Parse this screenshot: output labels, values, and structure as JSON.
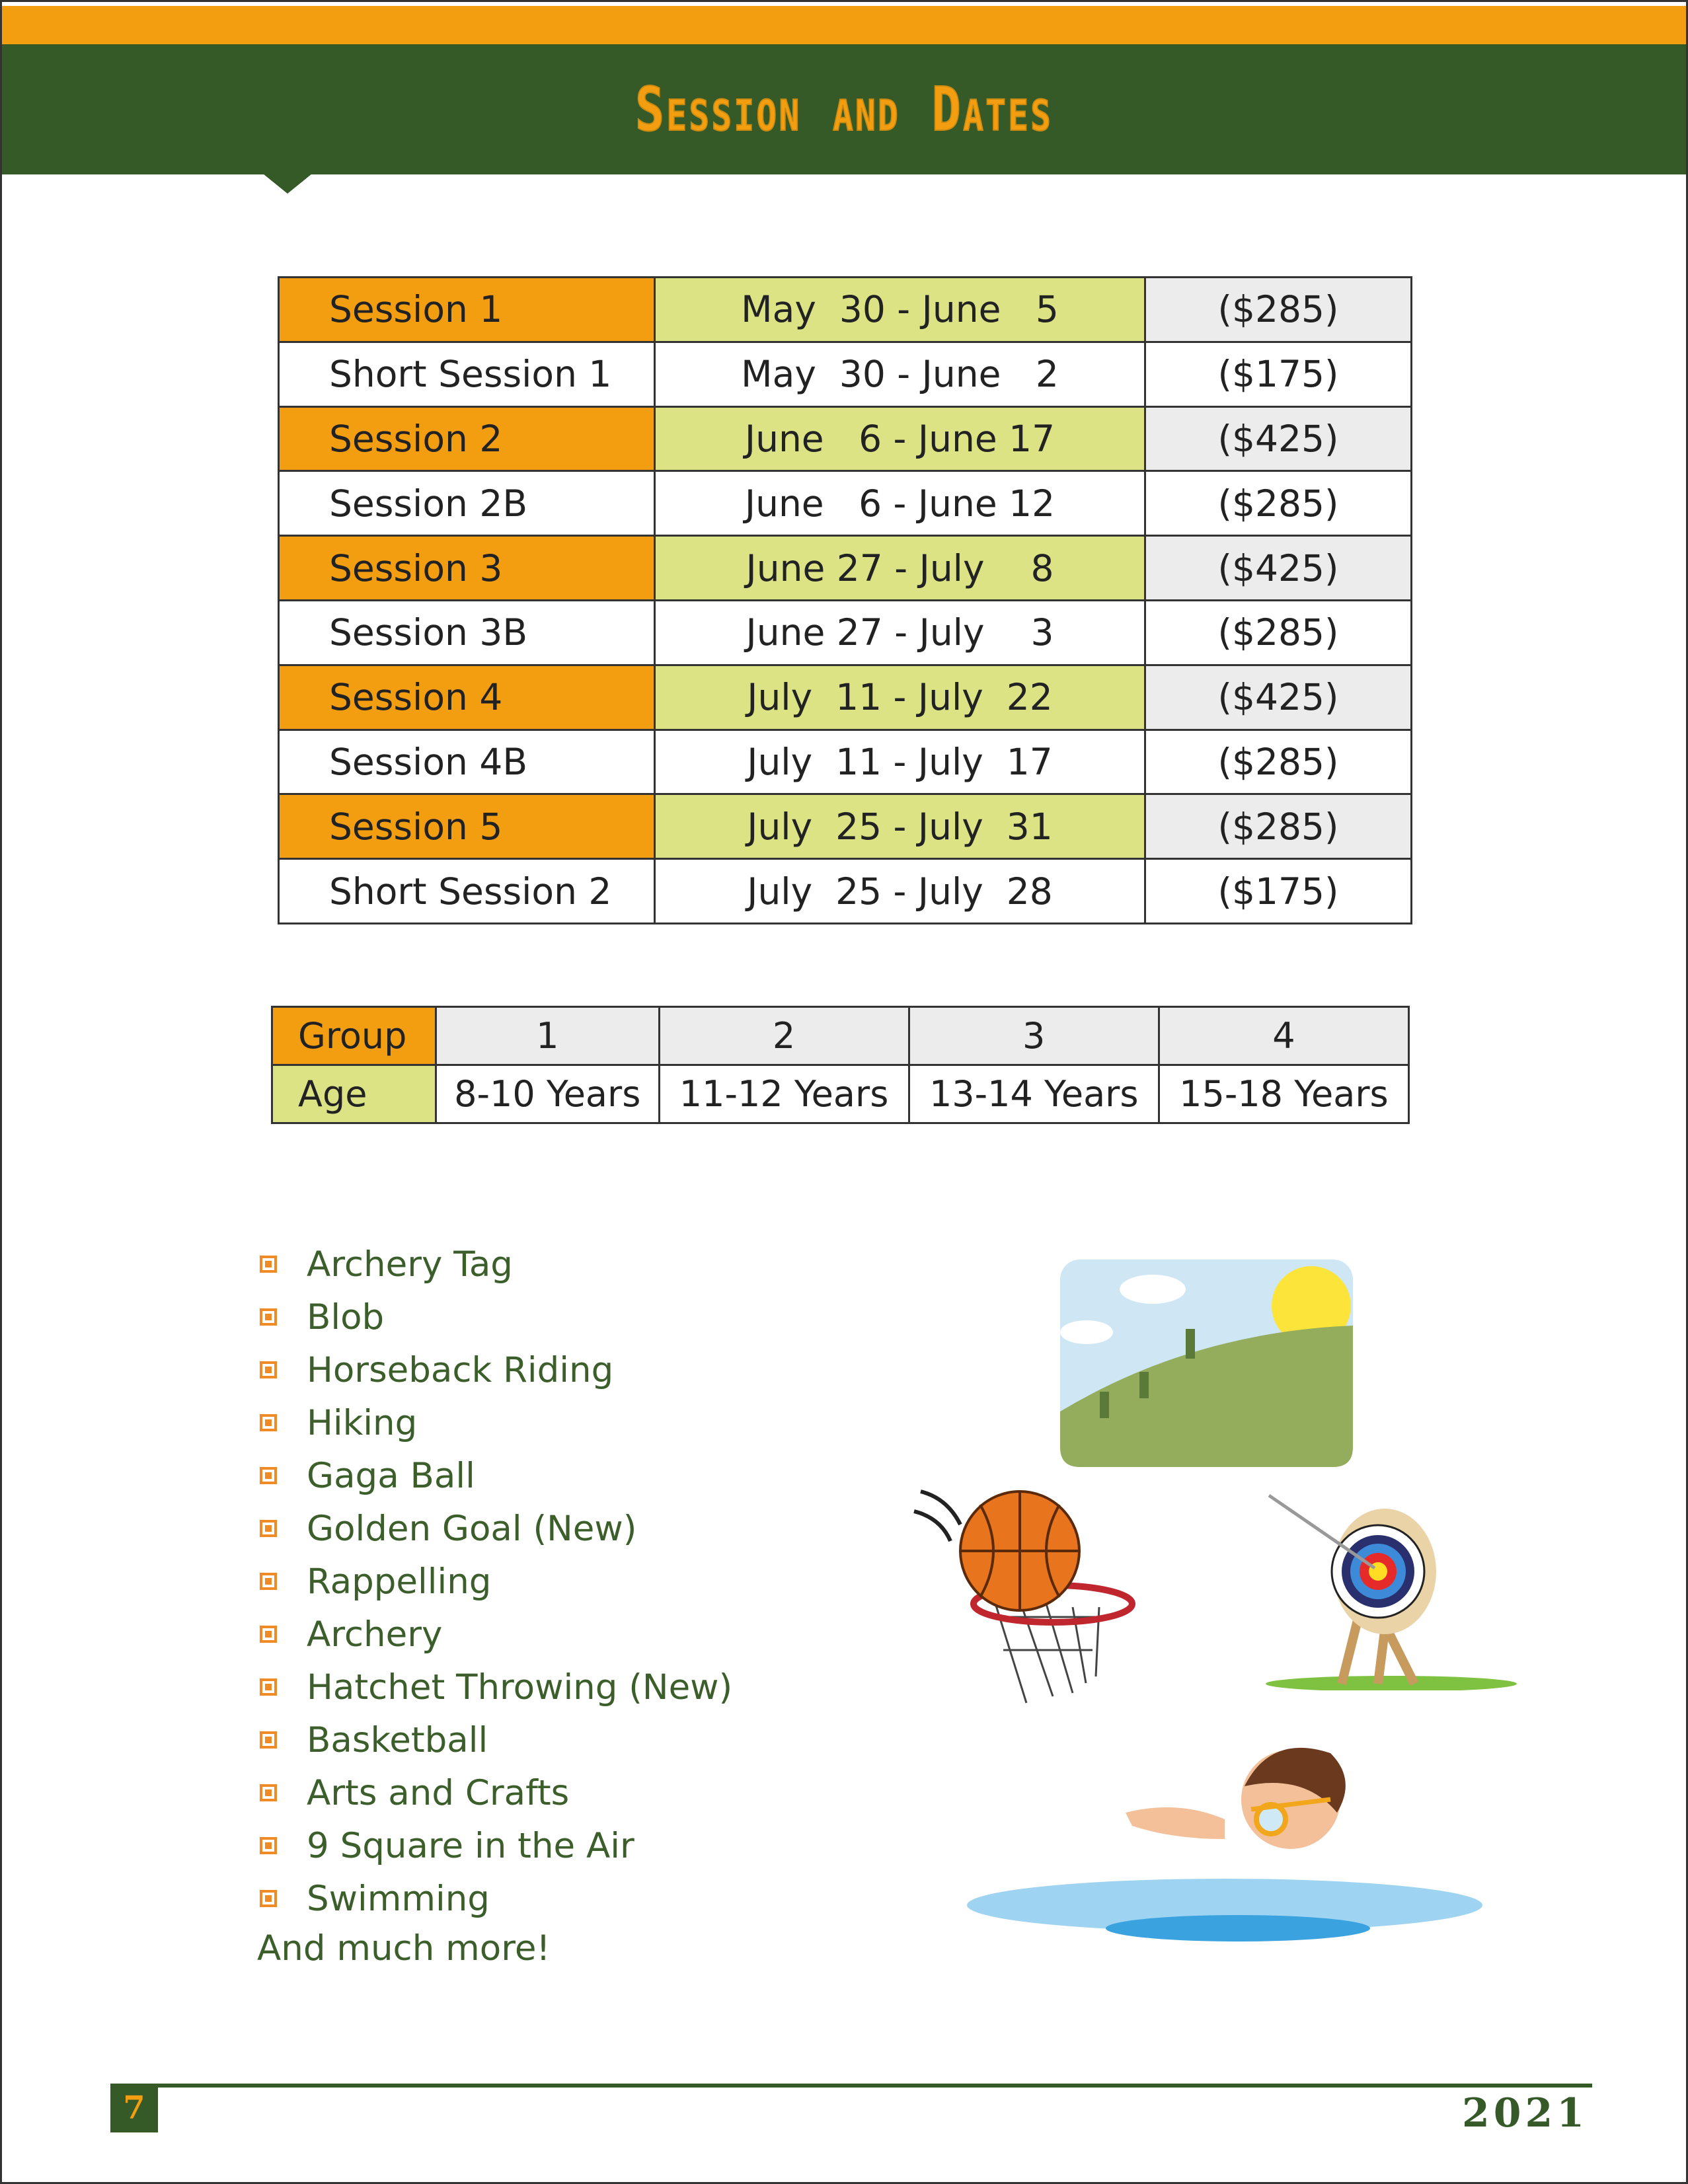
{
  "header": {
    "title": "Session and Dates"
  },
  "sessions": [
    {
      "name": "Session 1",
      "dates": "May  30 - June   5",
      "price": "($285)",
      "highlight": true
    },
    {
      "name": "Short Session 1",
      "dates": "May  30 - June   2",
      "price": "($175)",
      "highlight": false
    },
    {
      "name": "Session 2",
      "dates": "June   6 - June 17",
      "price": "($425)",
      "highlight": true
    },
    {
      "name": "Session 2B",
      "dates": "June   6 - June 12",
      "price": "($285)",
      "highlight": false
    },
    {
      "name": "Session 3",
      "dates": "June 27 - July    8",
      "price": "($425)",
      "highlight": true
    },
    {
      "name": "Session 3B",
      "dates": "June 27 - July    3",
      "price": "($285)",
      "highlight": false
    },
    {
      "name": "Session 4",
      "dates": "July  11 - July  22",
      "price": "($425)",
      "highlight": true
    },
    {
      "name": "Session 4B",
      "dates": "July  11 - July  17",
      "price": "($285)",
      "highlight": false
    },
    {
      "name": "Session 5",
      "dates": "July  25 - July  31",
      "price": "($285)",
      "highlight": true
    },
    {
      "name": "Short Session 2",
      "dates": "July  25 - July  28",
      "price": "($175)",
      "highlight": false
    }
  ],
  "groups": {
    "group_label": "Group",
    "age_label": "Age",
    "numbers": [
      "1",
      "2",
      "3",
      "4"
    ],
    "ages": [
      "8-10 Years",
      "11-12 Years",
      "13-14 Years",
      "15-18 Years"
    ]
  },
  "activities": [
    "Archery Tag",
    "Blob",
    "Horseback Riding",
    "Hiking",
    "Gaga Ball",
    "Golden Goal (New)",
    "Rappelling",
    "Archery",
    "Hatchet Throwing (New)",
    "Basketball",
    "Arts and Crafts",
    "9 Square in the Air",
    "Swimming"
  ],
  "more": "And much more!",
  "footer": {
    "page": "7",
    "year": "2021"
  },
  "colors": {
    "orange": "#f29e10",
    "green": "#365928",
    "lime": "#dce385",
    "gray": "#ececec",
    "text_green": "#3b5e2b"
  }
}
